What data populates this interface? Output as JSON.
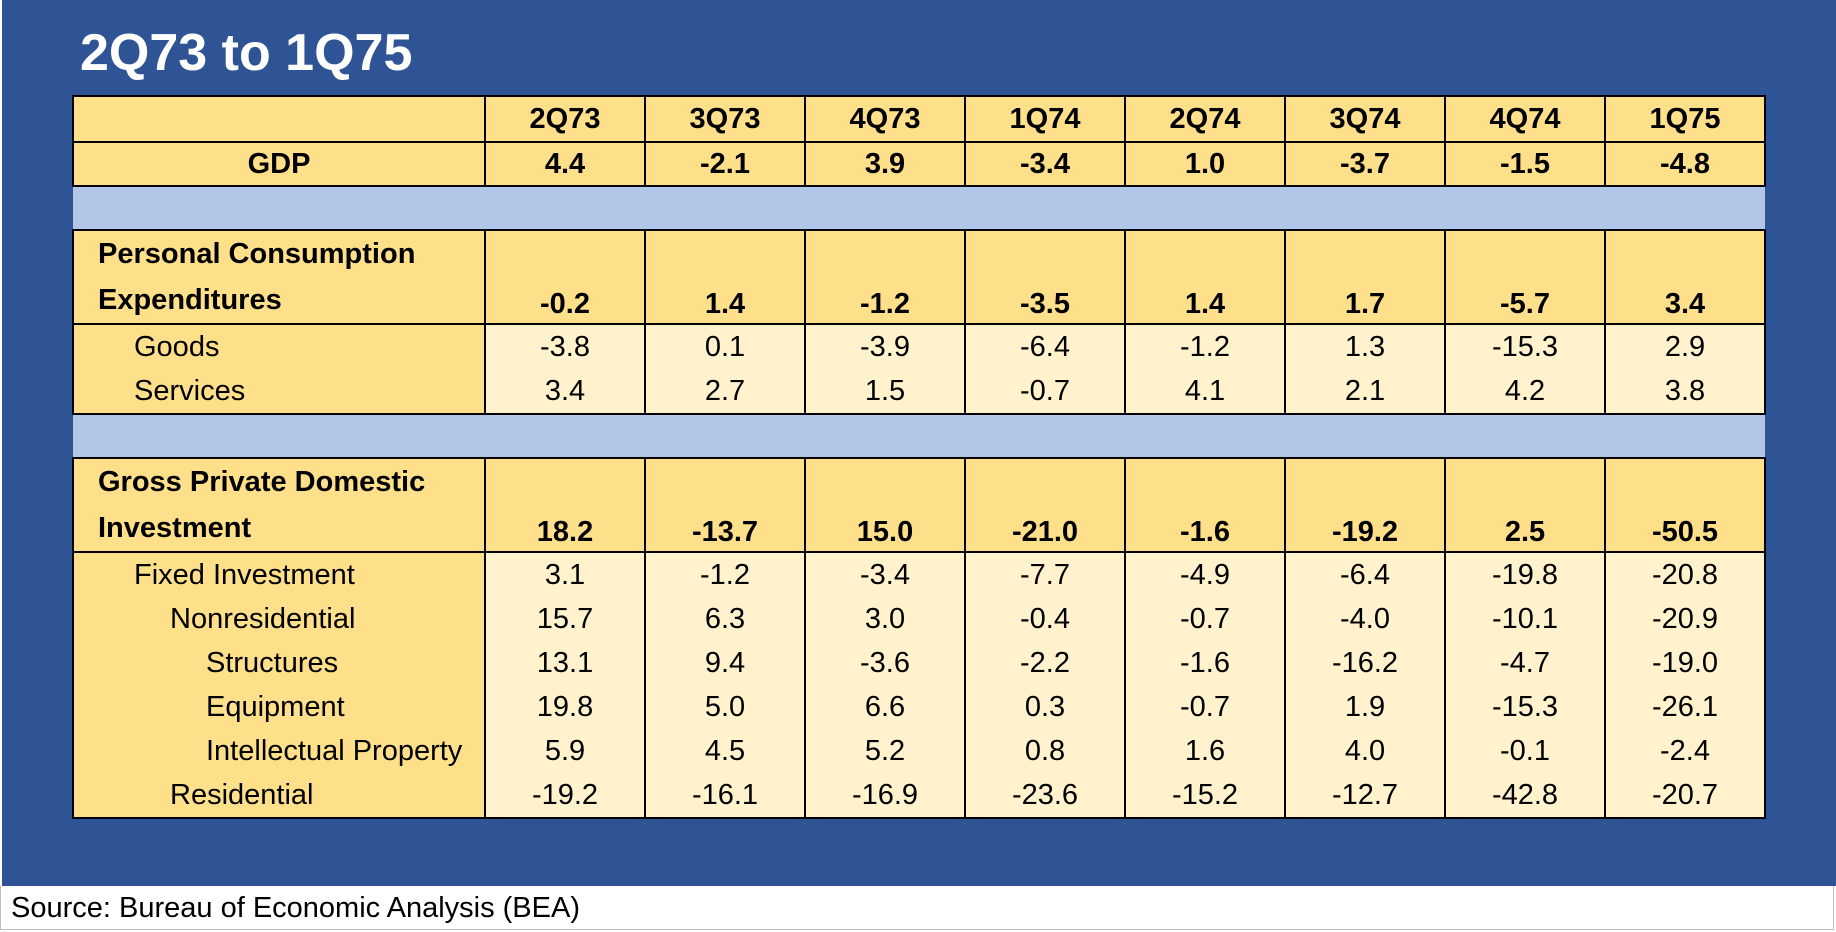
{
  "title": "2Q73 to 1Q75",
  "source": "Source: Bureau of Economic Analysis (BEA)",
  "quarters": [
    "2Q73",
    "3Q73",
    "4Q73",
    "1Q74",
    "2Q74",
    "3Q74",
    "4Q74",
    "1Q75"
  ],
  "gdp": {
    "label": "GDP",
    "values": [
      "4.4",
      "-2.1",
      "3.9",
      "-3.4",
      "1.0",
      "-3.7",
      "-1.5",
      "-4.8"
    ]
  },
  "pce": {
    "label": "Personal Consumption Expenditures",
    "values": [
      "-0.2",
      "1.4",
      "-1.2",
      "-3.5",
      "1.4",
      "1.7",
      "-5.7",
      "3.4"
    ],
    "goods": {
      "label": "Goods",
      "values": [
        "-3.8",
        "0.1",
        "-3.9",
        "-6.4",
        "-1.2",
        "1.3",
        "-15.3",
        "2.9"
      ]
    },
    "services": {
      "label": "Services",
      "values": [
        "3.4",
        "2.7",
        "1.5",
        "-0.7",
        "4.1",
        "2.1",
        "4.2",
        "3.8"
      ]
    }
  },
  "gpdi": {
    "label": "Gross Private Domestic Investment",
    "values": [
      "18.2",
      "-13.7",
      "15.0",
      "-21.0",
      "-1.6",
      "-19.2",
      "2.5",
      "-50.5"
    ],
    "fixed": {
      "label": "Fixed Investment",
      "values": [
        "3.1",
        "-1.2",
        "-3.4",
        "-7.7",
        "-4.9",
        "-6.4",
        "-19.8",
        "-20.8"
      ]
    },
    "nonres": {
      "label": "Nonresidential",
      "values": [
        "15.7",
        "6.3",
        "3.0",
        "-0.4",
        "-0.7",
        "-4.0",
        "-10.1",
        "-20.9"
      ]
    },
    "structures": {
      "label": "Structures",
      "values": [
        "13.1",
        "9.4",
        "-3.6",
        "-2.2",
        "-1.6",
        "-16.2",
        "-4.7",
        "-19.0"
      ]
    },
    "equipment": {
      "label": "Equipment",
      "values": [
        "19.8",
        "5.0",
        "6.6",
        "0.3",
        "-0.7",
        "1.9",
        "-15.3",
        "-26.1"
      ]
    },
    "ip": {
      "label": "Intellectual Property",
      "values": [
        "5.9",
        "4.5",
        "5.2",
        "0.8",
        "1.6",
        "4.0",
        "-0.1",
        "-2.4"
      ]
    },
    "residential": {
      "label": "Residential",
      "values": [
        "-19.2",
        "-16.1",
        "-16.9",
        "-23.6",
        "-15.2",
        "-12.7",
        "-42.8",
        "-20.7"
      ]
    }
  }
}
